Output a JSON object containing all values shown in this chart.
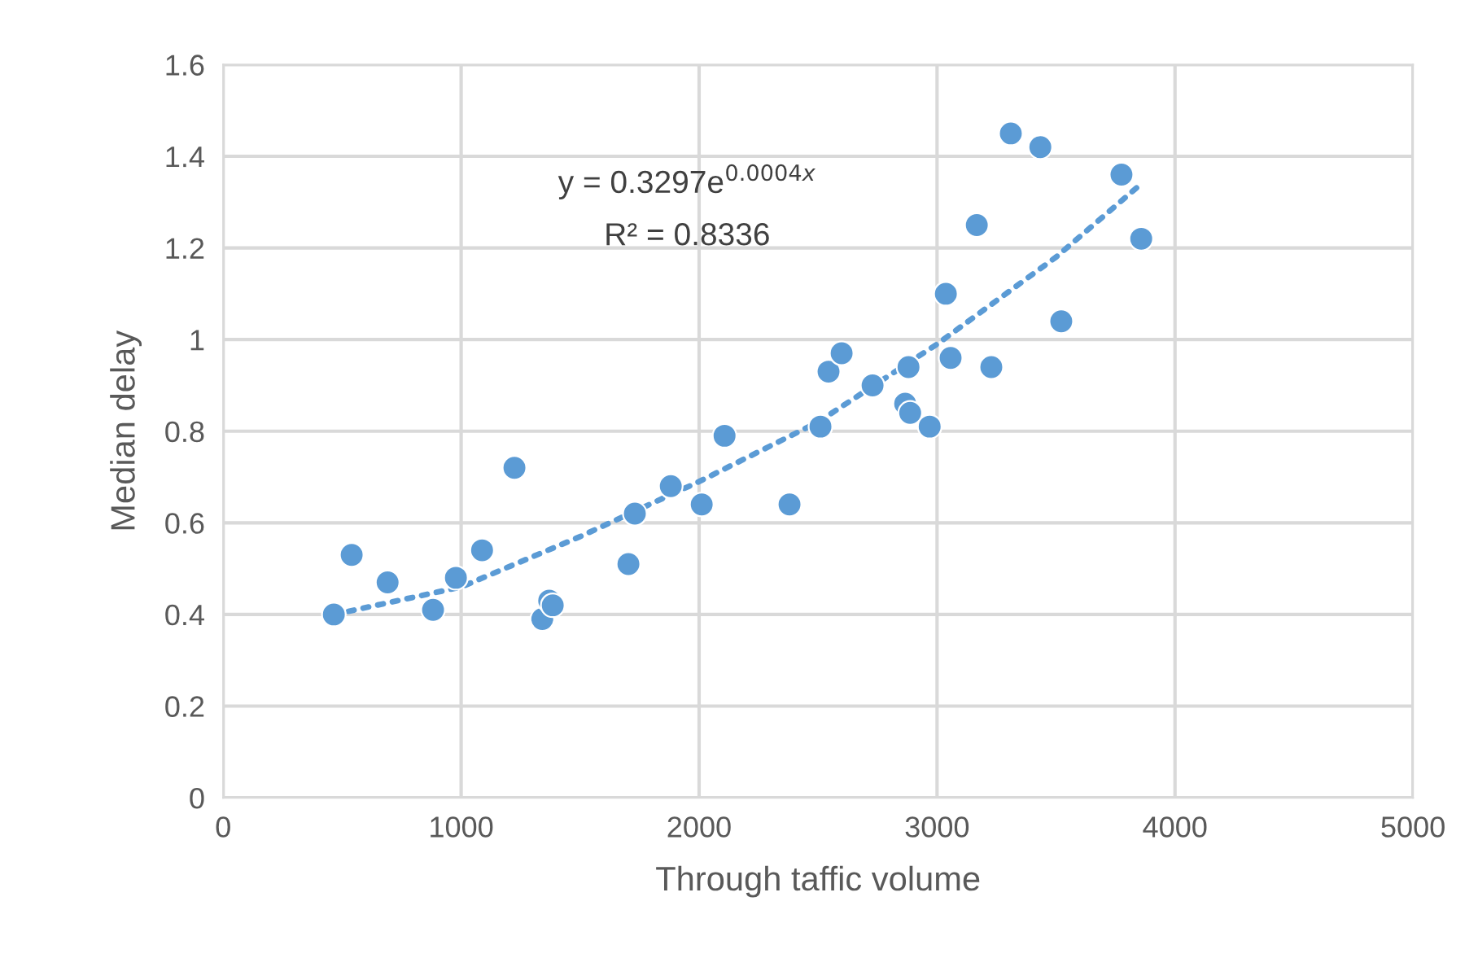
{
  "chart_data": {
    "type": "scatter",
    "xlabel": "Through taffic volume",
    "ylabel": "Median delay",
    "xlim": [
      0,
      5000
    ],
    "xticks": [
      0,
      1000,
      2000,
      3000,
      4000,
      5000
    ],
    "ylim": [
      0,
      1.6
    ],
    "yticks": [
      0,
      0.2,
      0.4,
      0.6,
      0.8,
      1,
      1.2,
      1.4,
      1.6
    ],
    "grid": true,
    "series": [
      {
        "color": "#5b9bd5",
        "marker": "circle",
        "x": [
          465,
          540,
          691,
          882,
          978,
          1088,
          1224,
          1341,
          1370,
          1385,
          1703,
          1730,
          1881,
          2011,
          2107,
          2380,
          2510,
          2544,
          2599,
          2729,
          2866,
          2880,
          2887,
          2969,
          3037,
          3057,
          3167,
          3228,
          3310,
          3434,
          3522,
          3775,
          3858
        ],
        "values": [
          0.4,
          0.53,
          0.47,
          0.41,
          0.48,
          0.54,
          0.72,
          0.39,
          0.43,
          0.42,
          0.51,
          0.62,
          0.68,
          0.64,
          0.79,
          0.64,
          0.81,
          0.93,
          0.97,
          0.9,
          0.86,
          0.94,
          0.84,
          0.81,
          1.1,
          0.96,
          1.25,
          0.94,
          1.45,
          1.42,
          1.04,
          1.36,
          1.22
        ]
      },
      {
        "type": "line",
        "color": "#5b9bd5",
        "line_style": "dotted",
        "marker": "none",
        "x": [
          465,
          1000,
          1500,
          2000,
          2500,
          3000,
          3500,
          3858
        ],
        "values": [
          0.4,
          0.46,
          0.57,
          0.69,
          0.82,
          0.99,
          1.18,
          1.34
        ]
      }
    ],
    "annotations": [
      "y = 0.3297e$^{0.0004x}$",
      "R² = 0.8336"
    ]
  }
}
